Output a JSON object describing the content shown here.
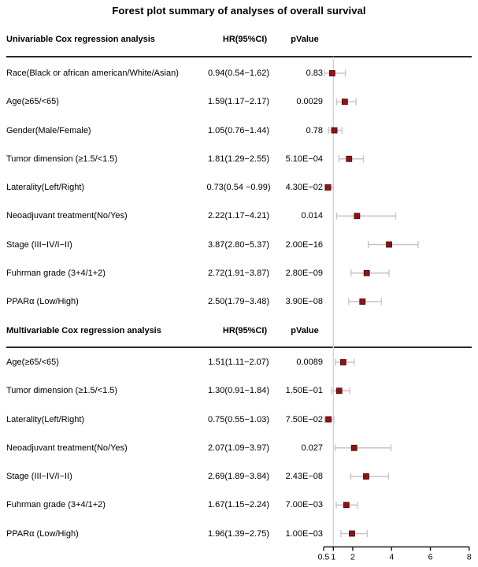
{
  "title": "Forest plot summary of analyses of overall survival",
  "colors": {
    "marker": "#8b1414",
    "marker_border": "#4e0808",
    "error_bar": "#c6c6c6",
    "ref_line": "#d4d4d4",
    "axis": "#1a1a1a",
    "separator": "#2a2a2a",
    "text": "#000000"
  },
  "chart_data": {
    "type": "forest",
    "title": "Forest plot summary of analyses of overall survival",
    "xlim": [
      0.5,
      8
    ],
    "axis": {
      "tick_values": [
        0.5,
        1,
        2,
        4,
        6,
        8
      ],
      "tick_labels": [
        "0.5",
        "1",
        "2",
        "4",
        "6",
        "8"
      ],
      "reference_line": 1,
      "scale": "linear",
      "grid": false
    },
    "sections": [
      {
        "header": {
          "label": "Univariable Cox regression analysis",
          "hr": "HR(95%CI)",
          "pvalue": "pValue"
        },
        "rows": [
          {
            "label": "Race(Black or african american/White/Asian)",
            "hr_text": "0.94(0.54−1.62)",
            "pvalue": "0.83",
            "hr": 0.94,
            "lo": 0.54,
            "hi": 1.62
          },
          {
            "label": "Age(≥65/<65)",
            "hr_text": "1.59(1.17−2.17)",
            "pvalue": "0.0029",
            "hr": 1.59,
            "lo": 1.17,
            "hi": 2.17
          },
          {
            "label": "Gender(Male/Female)",
            "hr_text": "1.05(0.76−1.44)",
            "pvalue": "0.78",
            "hr": 1.05,
            "lo": 0.76,
            "hi": 1.44
          },
          {
            "label": "Tumor dimension (≥1.5/<1.5)",
            "hr_text": "1.81(1.29−2.55)",
            "pvalue": "5.10E−04",
            "hr": 1.81,
            "lo": 1.29,
            "hi": 2.55
          },
          {
            "label": "Laterality(Left/Right)",
            "hr_text": "0.73(0.54 −0.99)",
            "pvalue": "4.30E−02",
            "hr": 0.73,
            "lo": 0.54,
            "hi": 0.99
          },
          {
            "label": "Neoadjuvant treatment(No/Yes)",
            "hr_text": "2.22(1.17−4.21)",
            "pvalue": "0.014",
            "hr": 2.22,
            "lo": 1.17,
            "hi": 4.21
          },
          {
            "label": "Stage (III−IV/I−II)",
            "hr_text": "3.87(2.80−5.37)",
            "pvalue": "2.00E−16",
            "hr": 3.87,
            "lo": 2.8,
            "hi": 5.37
          },
          {
            "label": "Fuhrman grade (3+4/1+2)",
            "hr_text": "2.72(1.91−3.87)",
            "pvalue": "2.80E−09",
            "hr": 2.72,
            "lo": 1.91,
            "hi": 3.87
          },
          {
            "label": "PPARα (Low/High)",
            "hr_text": "2.50(1.79−3.48)",
            "pvalue": "3.90E−08",
            "hr": 2.5,
            "lo": 1.79,
            "hi": 3.48
          }
        ]
      },
      {
        "header": {
          "label": "Multivariable Cox regression analysis",
          "hr": "HR(95%CI)",
          "pvalue": "pValue"
        },
        "rows": [
          {
            "label": "Age(≥65/<65)",
            "hr_text": "1.51(1.11−2.07)",
            "pvalue": "0.0089",
            "hr": 1.51,
            "lo": 1.11,
            "hi": 2.07
          },
          {
            "label": "Tumor dimension (≥1.5/<1.5)",
            "hr_text": "1.30(0.91−1.84)",
            "pvalue": "1.50E−01",
            "hr": 1.3,
            "lo": 0.91,
            "hi": 1.84
          },
          {
            "label": "Laterality(Left/Right)",
            "hr_text": "0.75(0.55−1.03)",
            "pvalue": "7.50E−02",
            "hr": 0.75,
            "lo": 0.55,
            "hi": 1.03
          },
          {
            "label": "Neoadjuvant treatment(No/Yes)",
            "hr_text": "2.07(1.09−3.97)",
            "pvalue": "0.027",
            "hr": 2.07,
            "lo": 1.09,
            "hi": 3.97
          },
          {
            "label": "Stage (III−IV/I−II)",
            "hr_text": "2.69(1.89−3.84)",
            "pvalue": "2.43E−08",
            "hr": 2.69,
            "lo": 1.89,
            "hi": 3.84
          },
          {
            "label": "Fuhrman grade (3+4/1+2)",
            "hr_text": "1.67(1.15−2.24)",
            "pvalue": "7.00E−03",
            "hr": 1.67,
            "lo": 1.15,
            "hi": 2.24
          },
          {
            "label": "PPARα (Low/High)",
            "hr_text": "1.96(1.39−2.75)",
            "pvalue": "1.00E−03",
            "hr": 1.96,
            "lo": 1.39,
            "hi": 2.75
          }
        ]
      }
    ]
  }
}
